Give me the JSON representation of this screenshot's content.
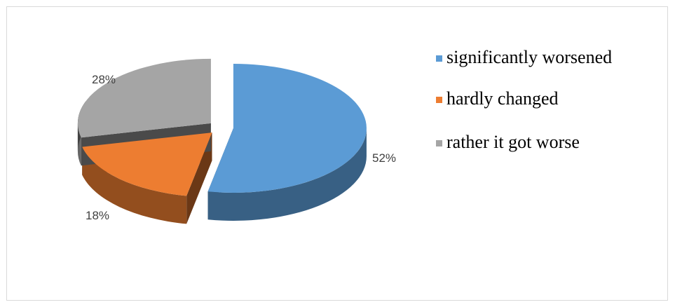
{
  "chart_data": {
    "type": "pie",
    "title": "",
    "slices": [
      {
        "label": "significantly worsened",
        "value": 52,
        "display": "52%",
        "color": "#5b9bd5"
      },
      {
        "label": "hardly changed",
        "value": 18,
        "display": "18%",
        "color": "#ed7d31"
      },
      {
        "label": "rather it got worse",
        "value": 28,
        "display": "28%",
        "color": "#a5a5a5"
      }
    ],
    "style": "3d-exploded",
    "legend_position": "right"
  }
}
